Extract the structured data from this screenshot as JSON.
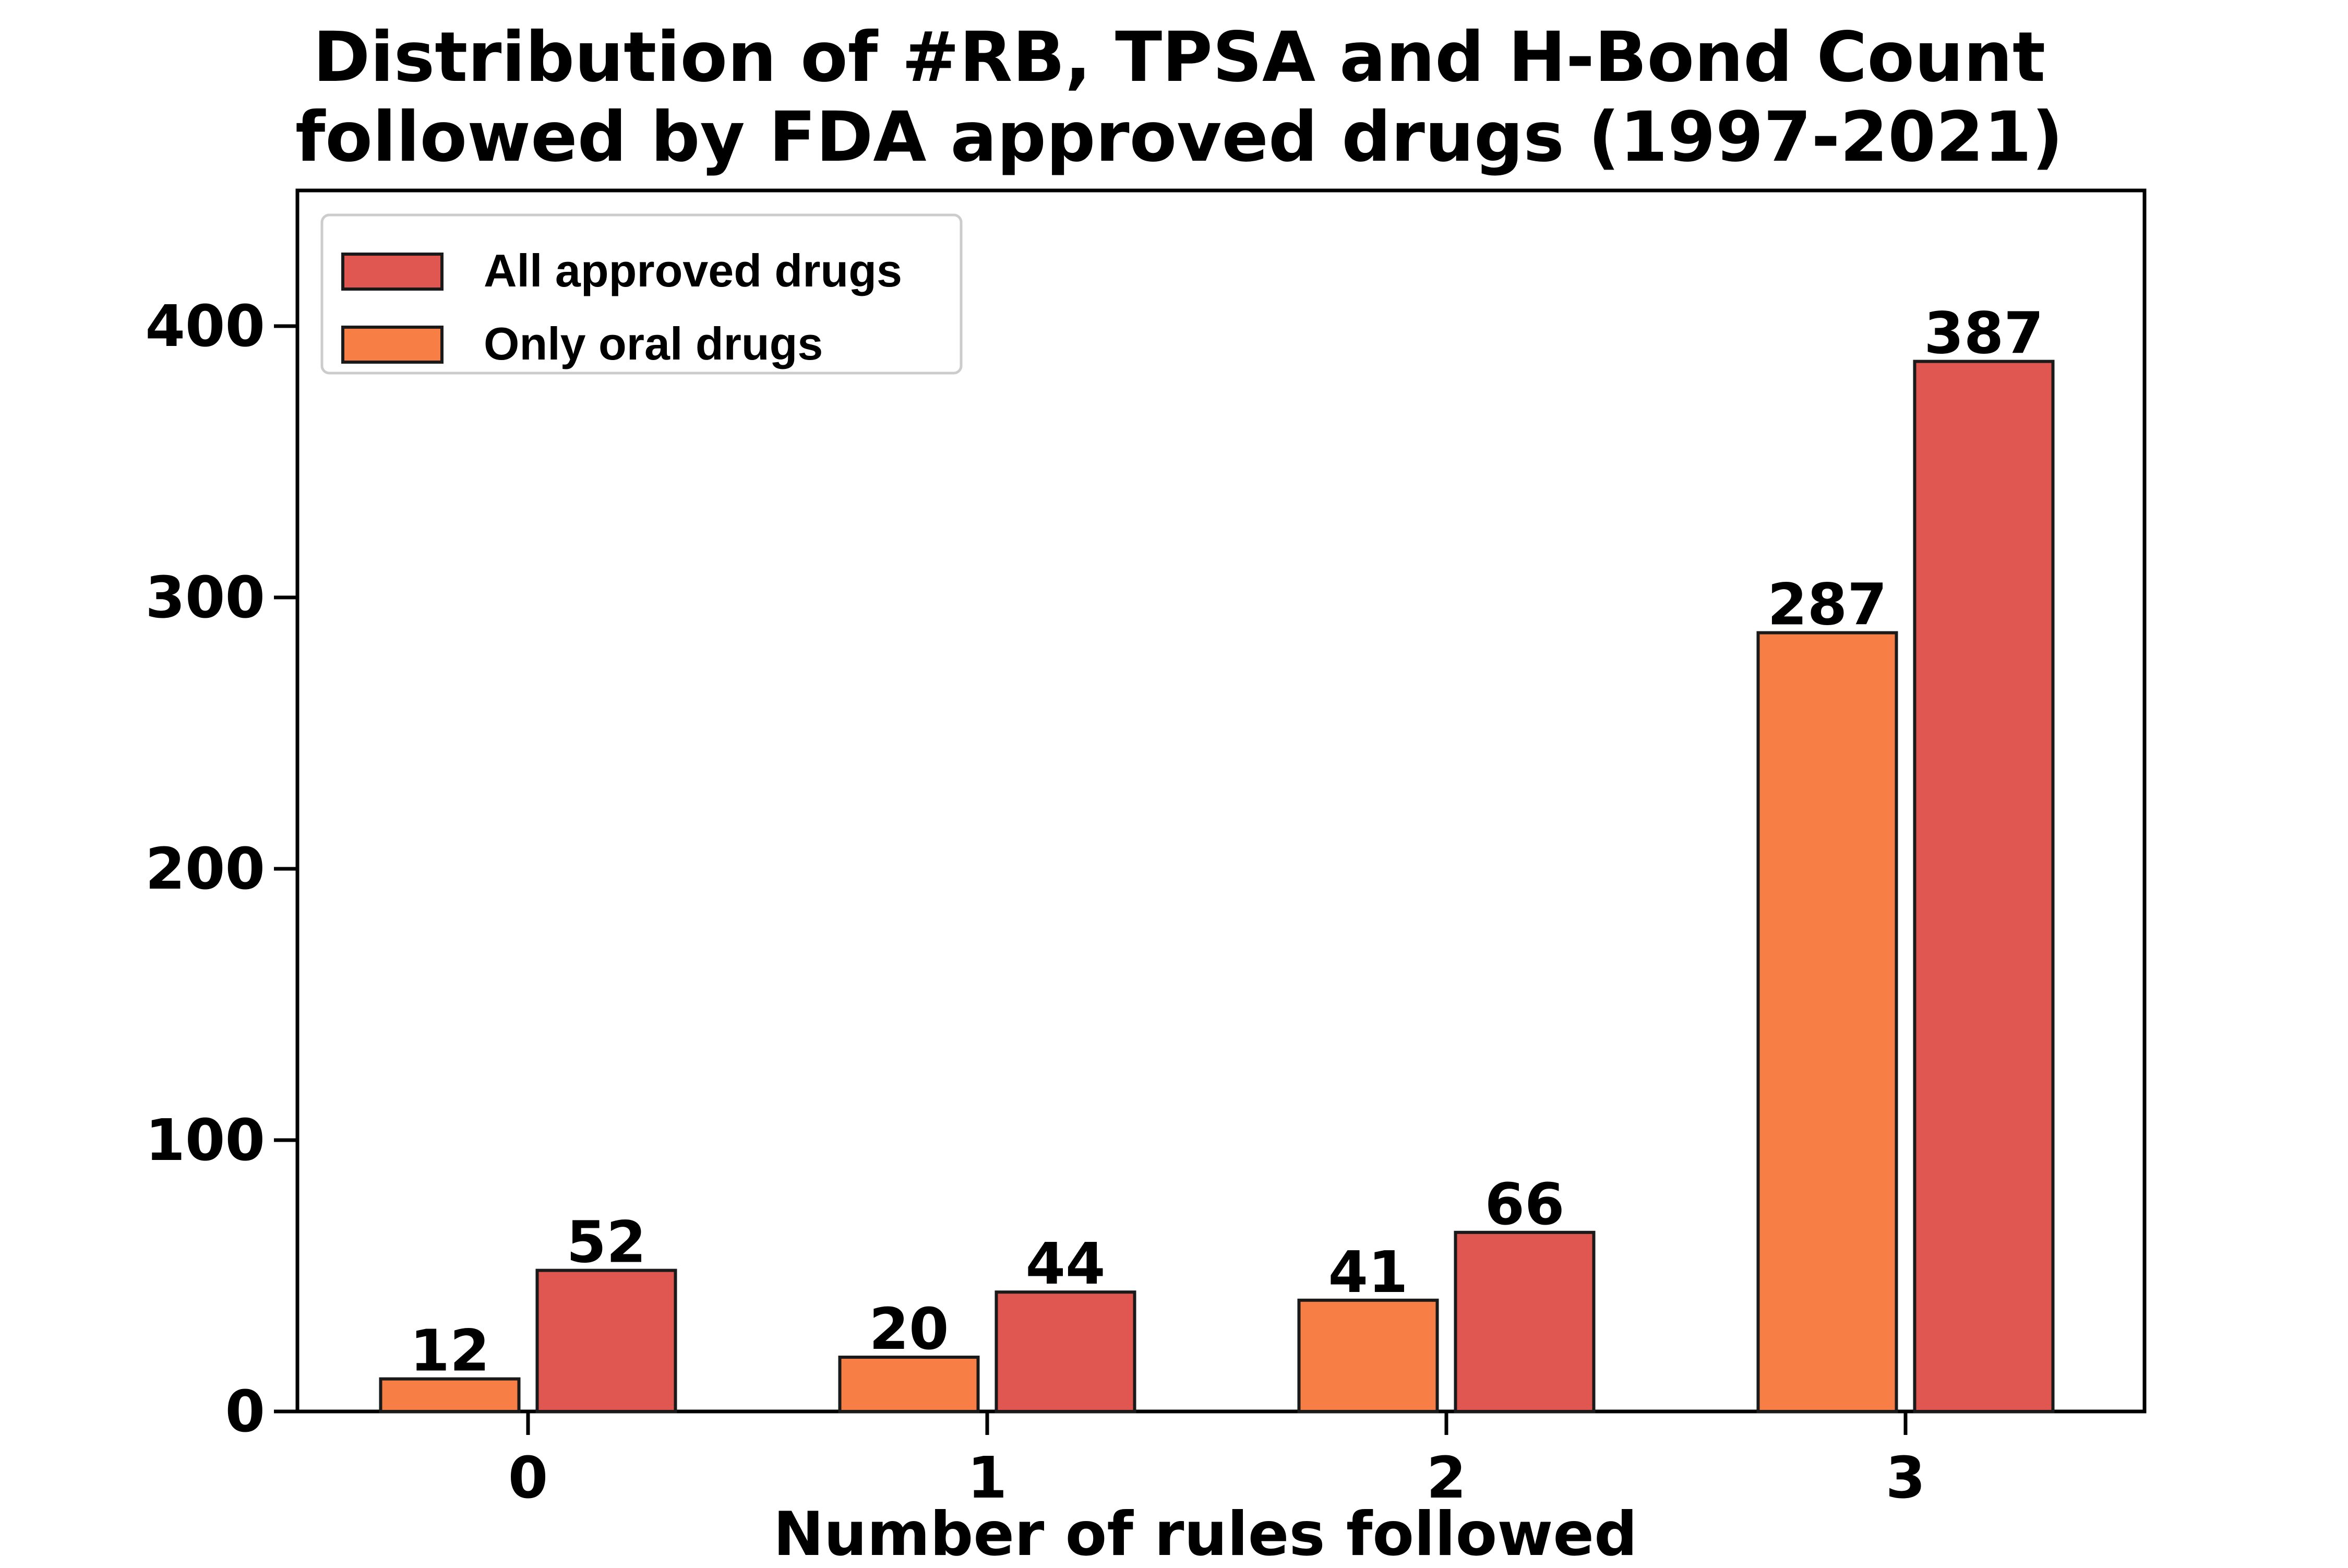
{
  "chart_data": {
    "type": "bar",
    "title": "Distribution of #RB, TPSA and H-Bond Count",
    "subtitle": "followed by FDA approved drugs (1997-2021)",
    "xlabel": "Number of rules followed",
    "ylabel": "",
    "categories": [
      "0",
      "1",
      "2",
      "3"
    ],
    "series": [
      {
        "name": "Only oral drugs",
        "values": [
          12,
          20,
          41,
          287
        ],
        "color": "#f77f45"
      },
      {
        "name": "All approved drugs",
        "values": [
          52,
          44,
          66,
          387
        ],
        "color": "#e05650"
      }
    ],
    "legend_order": [
      "All approved drugs",
      "Only oral drugs"
    ],
    "legend_position": "top-left",
    "ylim": [
      0,
      450
    ],
    "yticks": [
      0,
      100,
      200,
      300,
      400
    ],
    "grid": false,
    "edge_color": "#1a1a1a"
  }
}
